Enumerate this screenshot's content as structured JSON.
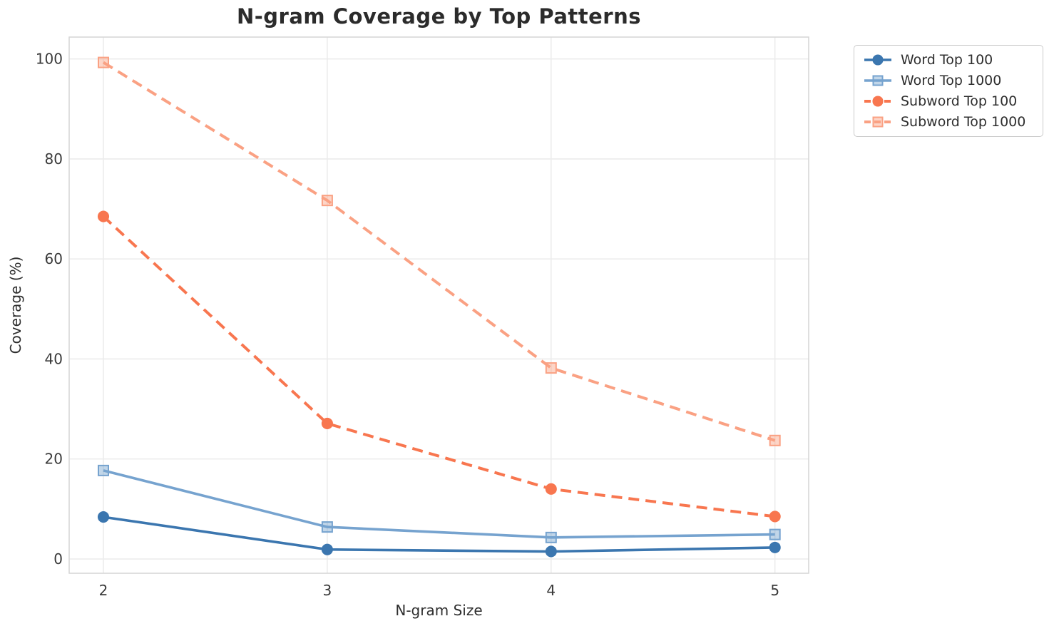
{
  "chart_data": {
    "type": "line",
    "title": "N-gram Coverage by Top Patterns",
    "xlabel": "N-gram Size",
    "ylabel": "Coverage (%)",
    "x": [
      2,
      3,
      4,
      5
    ],
    "x_tick_labels": [
      "2",
      "3",
      "4",
      "5"
    ],
    "y_ticks": [
      0,
      20,
      40,
      60,
      80,
      100
    ],
    "y_tick_labels": [
      "0",
      "20",
      "40",
      "60",
      "80",
      "100"
    ],
    "xlim": [
      1.85,
      5.15
    ],
    "ylim": [
      -2.8,
      104.3
    ],
    "grid": true,
    "legend_position": "outside-upper-right",
    "series": [
      {
        "name": "Word Top 100",
        "color": "#3b76af",
        "marker": "circle",
        "line_style": "solid",
        "values": [
          8.4,
          1.9,
          1.5,
          2.3
        ]
      },
      {
        "name": "Word Top 1000",
        "color": "#76a3cf",
        "marker": "square",
        "line_style": "solid",
        "values": [
          17.7,
          6.4,
          4.3,
          4.9
        ]
      },
      {
        "name": "Subword Top 100",
        "color": "#f8764f",
        "marker": "circle",
        "line_style": "dashed",
        "values": [
          68.5,
          27.1,
          14.0,
          8.5
        ]
      },
      {
        "name": "Subword Top 1000",
        "color": "#faa183",
        "marker": "square",
        "line_style": "dashed",
        "values": [
          99.3,
          71.7,
          38.2,
          23.7
        ]
      }
    ]
  },
  "colors": {
    "background": "#ffffff",
    "grid": "#ececec",
    "spine": "#d7d7d7",
    "title_text": "#2b2b2b",
    "tick_text": "#3a3a3a",
    "legend_border": "#cbcbcb"
  }
}
